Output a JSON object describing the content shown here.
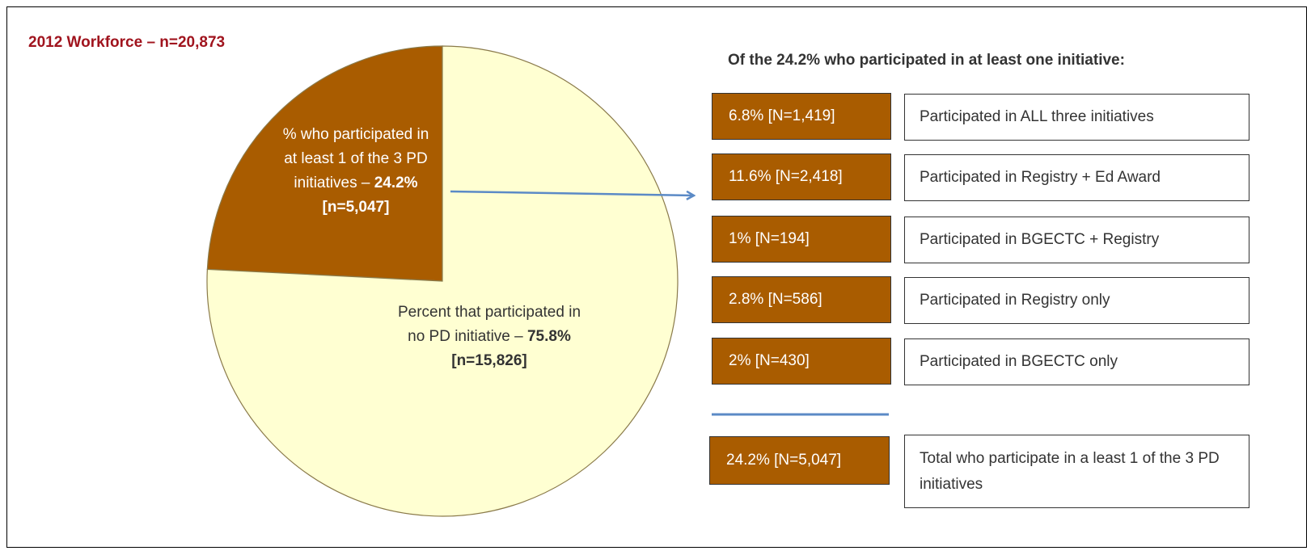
{
  "chart_data": {
    "type": "pie",
    "title": "2012 Workforce – n=20,873",
    "categories": [
      "% who participated in at least 1 of the 3 PD initiatives –",
      "Percent that participated in no PD initiative –"
    ],
    "values": [
      24.2,
      75.8
    ],
    "value_labels": [
      "24.2% [n=5,047]",
      "75.8% [n=15,826]"
    ],
    "colors": [
      "#a95c00",
      "#ffffd2"
    ]
  },
  "breakdown": {
    "heading": "Of the 24.2% who participated in at least one initiative:",
    "rows": [
      {
        "count": "6.8% [N=1,419]",
        "description": "Participated in ALL three initiatives"
      },
      {
        "count": "11.6% [N=2,418]",
        "description": "Participated in Registry + Ed Award"
      },
      {
        "count": "1% [N=194]",
        "description": "Participated in BGECTC + Registry"
      },
      {
        "count": "2.8% [N=586]",
        "description": "Participated in Registry only"
      },
      {
        "count": "2% [N=430]",
        "description": "Participated in BGECTC only"
      }
    ],
    "total": {
      "count": "24.2% [N=5,047]",
      "description": "Total who participate in a least 1 of the 3 PD initiatives"
    }
  }
}
